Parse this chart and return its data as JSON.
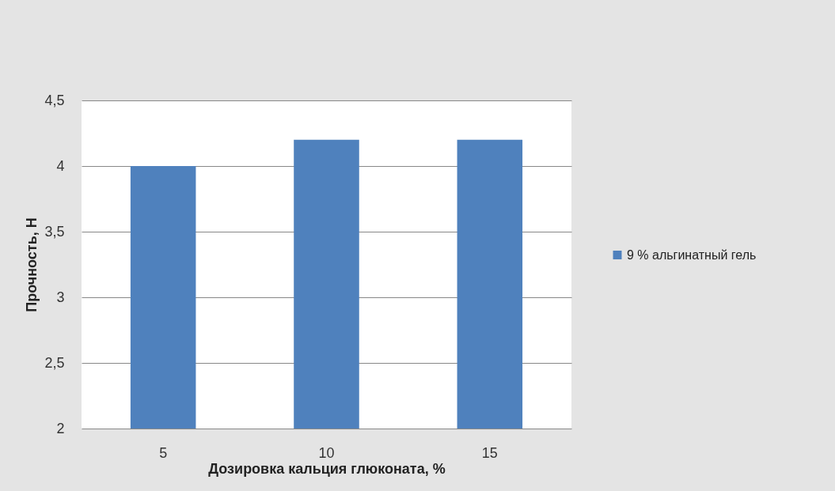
{
  "chart_data": {
    "type": "bar",
    "xlabel": "Дозировка кальция глюконата, %",
    "ylabel": "Прочность, Н",
    "categories": [
      "5",
      "10",
      "15"
    ],
    "series": [
      {
        "name": "9 % альгинатный гель",
        "color": "#4f81bd",
        "values": [
          4,
          4.2,
          4.2
        ]
      }
    ],
    "ylim": [
      2,
      4.5
    ],
    "yticks": [
      2,
      {
        "value": 2.5,
        "label": "2,5"
      },
      3,
      {
        "value": 3.5,
        "label": "3,5"
      },
      4,
      {
        "value": 4.5,
        "label": "4,5"
      }
    ],
    "grid": "y",
    "legend": "right"
  }
}
